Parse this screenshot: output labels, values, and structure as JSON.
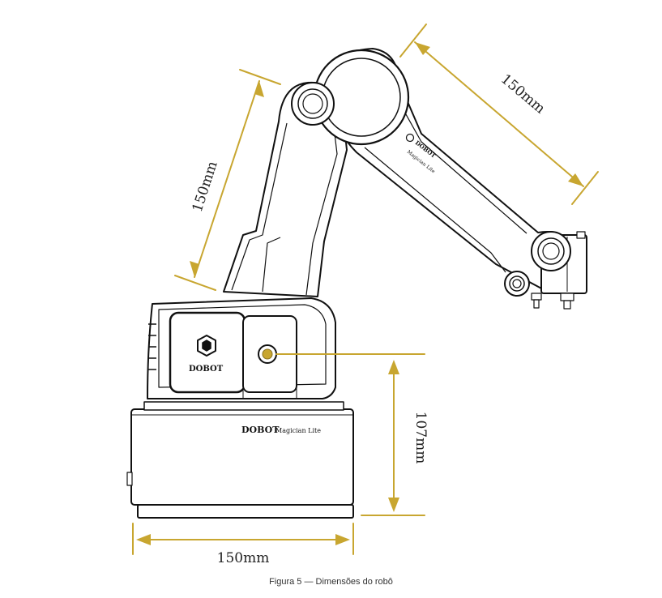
{
  "colors": {
    "dimension": "#c8a630",
    "outline": "#111111",
    "caption": "#333333"
  },
  "figure": {
    "caption": "Figura 5 — Dimensões do robô",
    "dimensions": {
      "upper_arm": "150mm",
      "forearm": "150mm",
      "base_height": "107mm",
      "base_width": "150mm"
    },
    "branding": {
      "panel_logo": "DOBOT",
      "base_brand": "DOBOT",
      "base_model": "Magician Lite",
      "arm_brand": "DOBOT",
      "arm_model": "Magician Lite"
    }
  }
}
